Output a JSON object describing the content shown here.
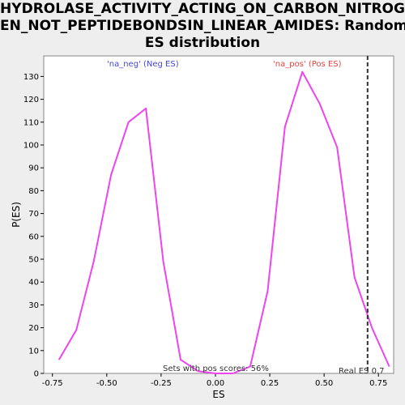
{
  "chart_data": {
    "type": "line",
    "title_lines": [
      "HYDROLASE_ACTIVITY_ACTING_ON_CARBON_NITROG",
      "EN_NOT_PEPTIDEBONDSIN_LINEAR_AMIDES: Random",
      "ES distribution"
    ],
    "xlabel": "ES",
    "ylabel": "P(ES)",
    "xlim": [
      -0.79,
      0.82
    ],
    "ylim": [
      0,
      139
    ],
    "x_ticks": [
      -0.75,
      -0.5,
      -0.25,
      0.0,
      0.25,
      0.5,
      0.75
    ],
    "x_tick_labels": [
      "-0.75",
      "-0.50",
      "-0.25",
      "0.00",
      "0.25",
      "0.50",
      "0.75"
    ],
    "y_ticks": [
      0,
      10,
      20,
      30,
      40,
      50,
      60,
      70,
      80,
      90,
      100,
      110,
      120,
      130
    ],
    "y_tick_labels": [
      "0",
      "10",
      "20",
      "30",
      "40",
      "50",
      "60",
      "70",
      "80",
      "90",
      "100",
      "110",
      "120",
      "130"
    ],
    "grid": false,
    "colors": {
      "series_line": "#ee44ee",
      "neg_label": "#4444dd",
      "pos_label": "#dd4444",
      "real_es_line": "#333333"
    },
    "series": [
      {
        "x": [
          -0.72,
          -0.64,
          -0.56,
          -0.48,
          -0.4,
          -0.32,
          -0.24,
          -0.16,
          -0.08,
          0.0,
          0.08,
          0.16,
          0.24,
          0.32,
          0.4,
          0.48,
          0.56,
          0.64,
          0.72,
          0.8
        ],
        "y": [
          6,
          19,
          49,
          87,
          110,
          116,
          49,
          6,
          1,
          0,
          0,
          3,
          36,
          108,
          132,
          118,
          99,
          42,
          20,
          3
        ]
      }
    ],
    "annotations": {
      "neg_label": "'na_neg' (Neg ES)",
      "pos_label": "'na_pos' (Pos ES)",
      "pos_scores": "Sets with pos scores: 56%",
      "real_es": "Real ES 0.7"
    },
    "real_es_value": 0.7
  }
}
